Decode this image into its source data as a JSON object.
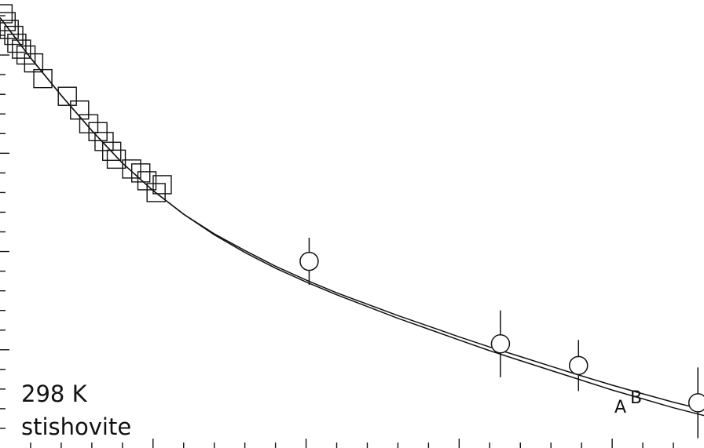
{
  "chart_data": {
    "type": "scatter",
    "title": "",
    "xlabel": "",
    "ylabel": "",
    "annotations": [
      "298 K",
      "stishovite"
    ],
    "curve_labels": [
      "A",
      "B"
    ],
    "xlim": [
      0,
      23
    ],
    "ylim": [
      0,
      22.8
    ],
    "x_ticks_major": [
      0,
      5,
      10,
      15,
      20
    ],
    "x_ticks_minor_step": 1,
    "y_ticks_major": [
      0,
      5,
      10,
      15,
      20
    ],
    "y_ticks_minor_step": 1,
    "grid": false,
    "series": [
      {
        "marker": "square",
        "points": [
          [
            0.1,
            22.1
          ],
          [
            0.2,
            21.7
          ],
          [
            0.3,
            21.3
          ],
          [
            0.45,
            21.0
          ],
          [
            0.55,
            20.6
          ],
          [
            0.7,
            20.3
          ],
          [
            0.85,
            20.0
          ],
          [
            1.1,
            19.6
          ],
          [
            1.4,
            18.8
          ],
          [
            2.2,
            17.9
          ],
          [
            2.6,
            17.2
          ],
          [
            2.9,
            16.5
          ],
          [
            3.2,
            16.1
          ],
          [
            3.4,
            15.6
          ],
          [
            3.65,
            15.1
          ],
          [
            3.8,
            14.7
          ],
          [
            4.3,
            14.2
          ],
          [
            4.6,
            14.0
          ],
          [
            4.8,
            13.6
          ],
          [
            5.1,
            13.0
          ],
          [
            5.3,
            13.4
          ]
        ]
      },
      {
        "marker": "circle",
        "points": [
          [
            10.1,
            9.5
          ],
          [
            16.35,
            5.3
          ],
          [
            18.9,
            4.2
          ],
          [
            22.8,
            2.3
          ]
        ],
        "yerr": [
          1.2,
          1.7,
          1.3,
          1.8
        ]
      },
      {
        "name": "A",
        "style": "line",
        "points": [
          [
            0,
            21.9
          ],
          [
            1,
            19.85
          ],
          [
            2,
            17.95
          ],
          [
            3,
            16.15
          ],
          [
            4,
            14.5
          ],
          [
            5,
            13.1
          ],
          [
            6,
            11.9
          ],
          [
            7,
            10.85
          ],
          [
            8,
            9.95
          ],
          [
            9,
            9.15
          ],
          [
            10,
            8.45
          ],
          [
            11,
            7.8
          ],
          [
            12,
            7.2
          ],
          [
            13,
            6.6
          ],
          [
            14,
            6.05
          ],
          [
            15,
            5.5
          ],
          [
            16,
            4.95
          ],
          [
            17,
            4.45
          ],
          [
            18,
            3.95
          ],
          [
            19,
            3.45
          ],
          [
            20,
            2.95
          ],
          [
            21,
            2.5
          ],
          [
            22,
            2.05
          ],
          [
            23,
            1.65
          ]
        ]
      },
      {
        "name": "B",
        "style": "line",
        "points": [
          [
            0,
            21.9
          ],
          [
            1,
            19.85
          ],
          [
            2,
            17.95
          ],
          [
            3,
            16.15
          ],
          [
            4,
            14.5
          ],
          [
            5,
            13.1
          ],
          [
            6,
            11.9
          ],
          [
            7,
            10.9
          ],
          [
            8,
            10.05
          ],
          [
            9,
            9.25
          ],
          [
            10,
            8.55
          ],
          [
            11,
            7.9
          ],
          [
            12,
            7.32
          ],
          [
            13,
            6.74
          ],
          [
            14,
            6.2
          ],
          [
            15,
            5.66
          ],
          [
            16,
            5.14
          ],
          [
            17,
            4.65
          ],
          [
            18,
            4.16
          ],
          [
            19,
            3.67
          ],
          [
            20,
            3.2
          ],
          [
            21,
            2.76
          ],
          [
            22,
            2.33
          ],
          [
            23,
            1.95
          ]
        ]
      }
    ]
  }
}
